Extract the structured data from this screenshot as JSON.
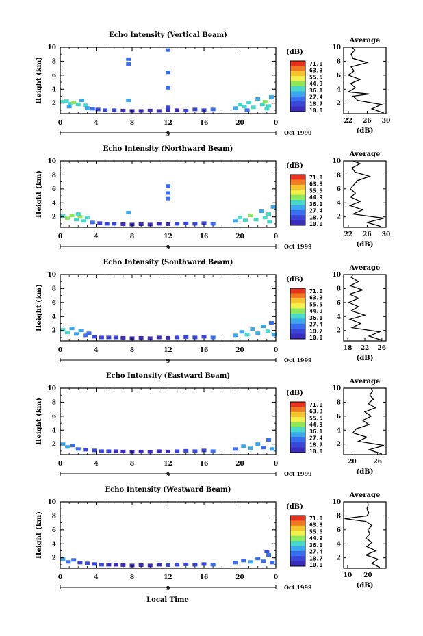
{
  "colorbar": {
    "unit_label": "(dB)",
    "levels": [
      "71.0",
      "63.3",
      "55.5",
      "44.9",
      "36.1",
      "27.4",
      "18.7",
      "10.0"
    ],
    "colors": [
      "#e8321e",
      "#f07a22",
      "#f6c42c",
      "#f2f04a",
      "#8ee85c",
      "#48d8c8",
      "#3aa8ec",
      "#3a6ef0",
      "#3a46d8",
      "#3a2cbc"
    ]
  },
  "x_axis": {
    "ticks": [
      "0",
      "4",
      "8",
      "12",
      "16",
      "20",
      "0"
    ],
    "date_day": "9",
    "date_label": "Oct 1999",
    "xlabel": "Local Time"
  },
  "chart_data": [
    {
      "type": "heatmap",
      "title": "Echo Intensity (Vertical Beam)",
      "ylabel": "Height (km)",
      "yticks": [
        "2",
        "4",
        "6",
        "8",
        "10"
      ],
      "ylim": [
        0.5,
        10
      ],
      "xlim": [
        0,
        24
      ],
      "cells": [
        [
          0.3,
          2.2,
          36
        ],
        [
          0.7,
          2.3,
          40
        ],
        [
          1.1,
          1.9,
          38
        ],
        [
          1.5,
          2.1,
          42
        ],
        [
          2.0,
          1.8,
          36
        ],
        [
          2.4,
          2.4,
          30
        ],
        [
          2.8,
          1.7,
          34
        ],
        [
          3.0,
          1.3,
          30
        ],
        [
          1.0,
          1.5,
          33
        ],
        [
          3.6,
          1.2,
          22
        ],
        [
          4.2,
          1.1,
          20
        ],
        [
          5.0,
          1.0,
          18
        ],
        [
          6.0,
          1.0,
          14
        ],
        [
          7.0,
          0.95,
          12
        ],
        [
          8.0,
          0.9,
          12
        ],
        [
          9.0,
          0.9,
          11
        ],
        [
          10.0,
          0.95,
          10
        ],
        [
          11.0,
          0.9,
          11
        ],
        [
          12.0,
          1.0,
          12
        ],
        [
          13.0,
          1.0,
          13
        ],
        [
          14.0,
          0.95,
          14
        ],
        [
          15.0,
          1.1,
          16
        ],
        [
          16.0,
          1.0,
          18
        ],
        [
          17.0,
          1.1,
          22
        ],
        [
          7.6,
          8.3,
          24
        ],
        [
          7.6,
          7.6,
          22
        ],
        [
          12.0,
          9.6,
          26
        ],
        [
          12.0,
          6.4,
          24
        ],
        [
          12.0,
          4.2,
          22
        ],
        [
          7.6,
          2.4,
          30
        ],
        [
          12.0,
          1.4,
          20
        ],
        [
          19.5,
          1.3,
          30
        ],
        [
          20.0,
          1.8,
          34
        ],
        [
          20.5,
          1.5,
          38
        ],
        [
          21.0,
          2.1,
          40
        ],
        [
          21.5,
          1.4,
          36
        ],
        [
          22.0,
          2.6,
          32
        ],
        [
          22.5,
          1.8,
          38
        ],
        [
          23.0,
          1.2,
          34
        ],
        [
          23.5,
          2.9,
          30
        ],
        [
          23.2,
          1.6,
          40
        ],
        [
          20.8,
          1.0,
          26
        ],
        [
          22.8,
          2.2,
          42
        ]
      ],
      "average": {
        "xlabel": "(dB)",
        "xticks": [
          "22",
          "26",
          "30"
        ],
        "xlim": [
          21,
          30
        ],
        "profile": [
          [
            0.6,
            29.5
          ],
          [
            1.2,
            27
          ],
          [
            1.8,
            29
          ],
          [
            2.4,
            24
          ],
          [
            3.0,
            23
          ],
          [
            3.3,
            26.5
          ],
          [
            3.6,
            22
          ],
          [
            4.2,
            23.5
          ],
          [
            4.8,
            22.5
          ],
          [
            5.4,
            24.5
          ],
          [
            6.0,
            22
          ],
          [
            6.6,
            23.2
          ],
          [
            7.2,
            22.6
          ],
          [
            7.8,
            26.0
          ],
          [
            8.4,
            23.0
          ],
          [
            9.0,
            22.6
          ],
          [
            9.6,
            23.4
          ],
          [
            10.0,
            22.8
          ]
        ]
      }
    },
    {
      "type": "heatmap",
      "title": "Echo Intensity (Northward Beam)",
      "ylabel": "Height (km)",
      "yticks": [
        "2",
        "4",
        "6",
        "8",
        "10"
      ],
      "ylim": [
        0.5,
        10
      ],
      "xlim": [
        0,
        24
      ],
      "cells": [
        [
          0.3,
          2.1,
          38
        ],
        [
          0.8,
          1.8,
          42
        ],
        [
          1.3,
          2.2,
          44
        ],
        [
          1.8,
          1.6,
          40
        ],
        [
          2.2,
          2.0,
          46
        ],
        [
          2.6,
          1.4,
          36
        ],
        [
          3.0,
          1.9,
          34
        ],
        [
          2.0,
          2.4,
          38
        ],
        [
          3.6,
          1.2,
          22
        ],
        [
          4.4,
          1.1,
          20
        ],
        [
          5.2,
          1.0,
          18
        ],
        [
          6.0,
          1.0,
          15
        ],
        [
          7.0,
          0.95,
          12
        ],
        [
          8.0,
          0.9,
          11
        ],
        [
          9.0,
          0.95,
          10
        ],
        [
          10.0,
          0.9,
          11
        ],
        [
          11.0,
          1.0,
          12
        ],
        [
          12.0,
          0.95,
          13
        ],
        [
          13.0,
          1.0,
          14
        ],
        [
          14.0,
          1.05,
          16
        ],
        [
          15.0,
          1.0,
          18
        ],
        [
          16.0,
          1.1,
          20
        ],
        [
          17.0,
          1.0,
          24
        ],
        [
          12.0,
          6.4,
          24
        ],
        [
          12.0,
          5.4,
          22
        ],
        [
          12.0,
          4.6,
          22
        ],
        [
          7.6,
          2.6,
          28
        ],
        [
          19.5,
          1.4,
          30
        ],
        [
          20.0,
          1.9,
          34
        ],
        [
          20.6,
          1.5,
          38
        ],
        [
          21.2,
          2.2,
          42
        ],
        [
          21.8,
          1.6,
          36
        ],
        [
          22.4,
          2.8,
          32
        ],
        [
          22.8,
          1.9,
          40
        ],
        [
          23.3,
          1.3,
          34
        ],
        [
          23.7,
          3.4,
          28
        ],
        [
          23.2,
          2.4,
          38
        ]
      ],
      "average": {
        "xlabel": "(dB)",
        "xticks": [
          "22",
          "26",
          "30"
        ],
        "xlim": [
          21,
          30
        ],
        "profile": [
          [
            0.6,
            29
          ],
          [
            1.2,
            26
          ],
          [
            1.8,
            29.5
          ],
          [
            2.4,
            23
          ],
          [
            3.0,
            25
          ],
          [
            3.6,
            22.4
          ],
          [
            4.2,
            24.5
          ],
          [
            4.8,
            22.6
          ],
          [
            5.4,
            23.5
          ],
          [
            6.0,
            22.4
          ],
          [
            6.6,
            23.2
          ],
          [
            7.2,
            24.0
          ],
          [
            7.8,
            26.5
          ],
          [
            8.4,
            23.4
          ],
          [
            9.0,
            22.8
          ],
          [
            9.6,
            24.5
          ],
          [
            10.0,
            23.0
          ]
        ]
      }
    },
    {
      "type": "heatmap",
      "title": "Echo Intensity (Southward Beam)",
      "ylabel": "Height (km)",
      "yticks": [
        "2",
        "4",
        "6",
        "8",
        "10"
      ],
      "ylim": [
        0.5,
        10
      ],
      "xlim": [
        0,
        24
      ],
      "cells": [
        [
          0.3,
          2.1,
          34
        ],
        [
          0.8,
          1.7,
          36
        ],
        [
          1.3,
          2.3,
          30
        ],
        [
          1.8,
          1.5,
          32
        ],
        [
          2.3,
          2.0,
          28
        ],
        [
          2.8,
          1.3,
          26
        ],
        [
          3.2,
          1.6,
          24
        ],
        [
          3.8,
          1.1,
          20
        ],
        [
          4.6,
          1.0,
          18
        ],
        [
          5.4,
          1.0,
          16
        ],
        [
          6.2,
          1.0,
          14
        ],
        [
          7.0,
          0.95,
          12
        ],
        [
          8.0,
          0.9,
          11
        ],
        [
          9.0,
          0.95,
          10
        ],
        [
          10.0,
          0.9,
          11
        ],
        [
          11.0,
          1.0,
          12
        ],
        [
          12.0,
          0.95,
          13
        ],
        [
          13.0,
          1.0,
          14
        ],
        [
          14.0,
          1.05,
          16
        ],
        [
          15.0,
          1.0,
          18
        ],
        [
          16.0,
          1.1,
          20
        ],
        [
          17.0,
          1.0,
          24
        ],
        [
          19.5,
          1.3,
          28
        ],
        [
          20.2,
          1.8,
          32
        ],
        [
          20.8,
          1.4,
          34
        ],
        [
          21.4,
          2.2,
          30
        ],
        [
          22.0,
          1.6,
          32
        ],
        [
          22.6,
          2.6,
          28
        ],
        [
          23.1,
          1.9,
          34
        ],
        [
          23.5,
          3.1,
          26
        ],
        [
          23.8,
          1.4,
          30
        ]
      ],
      "average": {
        "xlabel": "(dB)",
        "xticks": [
          "18",
          "22",
          "26"
        ],
        "xlim": [
          17,
          27
        ],
        "profile": [
          [
            0.6,
            26
          ],
          [
            1.2,
            23
          ],
          [
            1.8,
            25.5
          ],
          [
            2.4,
            19
          ],
          [
            3.0,
            21
          ],
          [
            3.6,
            18.5
          ],
          [
            4.2,
            22
          ],
          [
            4.8,
            18.8
          ],
          [
            5.4,
            20.5
          ],
          [
            6.0,
            18.2
          ],
          [
            6.6,
            20.5
          ],
          [
            7.2,
            18.4
          ],
          [
            7.8,
            21.5
          ],
          [
            8.4,
            18.6
          ],
          [
            9.0,
            20.5
          ],
          [
            9.6,
            18.8
          ],
          [
            10.0,
            19.2
          ]
        ]
      }
    },
    {
      "type": "heatmap",
      "title": "Echo Intensity (Eastward Beam)",
      "ylabel": "Height (km)",
      "yticks": [
        "2",
        "4",
        "6",
        "8",
        "10"
      ],
      "ylim": [
        0.5,
        10
      ],
      "xlim": [
        0,
        24
      ],
      "cells": [
        [
          0.3,
          2.0,
          30
        ],
        [
          0.8,
          1.6,
          28
        ],
        [
          1.4,
          1.8,
          24
        ],
        [
          2.0,
          1.3,
          22
        ],
        [
          2.8,
          1.2,
          20
        ],
        [
          3.8,
          1.1,
          18
        ],
        [
          4.6,
          1.0,
          16
        ],
        [
          5.4,
          1.0,
          14
        ],
        [
          6.2,
          1.0,
          13
        ],
        [
          7.0,
          0.95,
          12
        ],
        [
          8.0,
          0.9,
          11
        ],
        [
          9.0,
          0.95,
          10
        ],
        [
          10.0,
          0.9,
          11
        ],
        [
          11.0,
          1.0,
          12
        ],
        [
          12.0,
          0.95,
          13
        ],
        [
          13.0,
          1.0,
          14
        ],
        [
          14.0,
          1.05,
          16
        ],
        [
          15.0,
          1.0,
          18
        ],
        [
          16.0,
          1.1,
          20
        ],
        [
          17.0,
          1.0,
          22
        ],
        [
          19.5,
          1.3,
          26
        ],
        [
          20.4,
          1.7,
          28
        ],
        [
          21.2,
          1.4,
          30
        ],
        [
          22.0,
          2.0,
          28
        ],
        [
          22.6,
          1.5,
          26
        ],
        [
          23.2,
          2.6,
          24
        ],
        [
          23.6,
          1.3,
          28
        ]
      ],
      "average": {
        "xlabel": "(dB)",
        "xticks": [
          "20",
          "26"
        ],
        "xlim": [
          18,
          28
        ],
        "profile": [
          [
            0.6,
            27
          ],
          [
            1.2,
            24
          ],
          [
            1.8,
            27.5
          ],
          [
            2.4,
            21.5
          ],
          [
            3.0,
            23.5
          ],
          [
            3.6,
            20.2
          ],
          [
            4.2,
            21
          ],
          [
            4.8,
            24
          ],
          [
            5.4,
            22.5
          ],
          [
            6.0,
            24.5
          ],
          [
            6.6,
            23
          ],
          [
            7.2,
            25.5
          ],
          [
            7.8,
            23.8
          ],
          [
            8.4,
            25
          ],
          [
            9.0,
            24.2
          ],
          [
            9.6,
            24.8
          ],
          [
            10.0,
            24.5
          ]
        ]
      }
    },
    {
      "type": "heatmap",
      "title": "Echo Intensity (Westward Beam)",
      "ylabel": "Height (km)",
      "yticks": [
        "2",
        "4",
        "6",
        "8",
        "10"
      ],
      "ylim": [
        0.5,
        10
      ],
      "xlim": [
        0,
        24
      ],
      "cells": [
        [
          0.3,
          1.8,
          28
        ],
        [
          0.9,
          1.4,
          26
        ],
        [
          1.5,
          1.7,
          22
        ],
        [
          2.2,
          1.3,
          20
        ],
        [
          3.0,
          1.2,
          18
        ],
        [
          3.8,
          1.1,
          16
        ],
        [
          4.6,
          1.0,
          14
        ],
        [
          5.4,
          1.0,
          13
        ],
        [
          6.2,
          1.0,
          12
        ],
        [
          7.0,
          0.95,
          11
        ],
        [
          8.0,
          0.9,
          10
        ],
        [
          9.0,
          0.95,
          11
        ],
        [
          10.0,
          0.9,
          12
        ],
        [
          11.0,
          1.0,
          13
        ],
        [
          12.0,
          0.95,
          14
        ],
        [
          13.0,
          1.0,
          15
        ],
        [
          14.0,
          1.05,
          16
        ],
        [
          15.0,
          1.0,
          18
        ],
        [
          16.0,
          1.1,
          20
        ],
        [
          17.0,
          1.0,
          22
        ],
        [
          19.5,
          1.3,
          24
        ],
        [
          20.4,
          1.6,
          26
        ],
        [
          21.2,
          1.4,
          28
        ],
        [
          22.0,
          1.9,
          26
        ],
        [
          22.6,
          1.5,
          24
        ],
        [
          23.2,
          2.4,
          22
        ],
        [
          23.6,
          1.3,
          26
        ],
        [
          23.0,
          2.9,
          20
        ]
      ],
      "average": {
        "xlabel": "(dB)",
        "xticks": [
          "10",
          "20"
        ],
        "xlim": [
          8,
          29
        ],
        "profile": [
          [
            0.6,
            26
          ],
          [
            1.2,
            22
          ],
          [
            1.8,
            25
          ],
          [
            2.4,
            19
          ],
          [
            3.0,
            24
          ],
          [
            3.6,
            19.5
          ],
          [
            4.2,
            22
          ],
          [
            4.8,
            19
          ],
          [
            5.4,
            21
          ],
          [
            6.0,
            20
          ],
          [
            6.6,
            22
          ],
          [
            7.2,
            19
          ],
          [
            7.6,
            8.5
          ],
          [
            8.0,
            19.5
          ],
          [
            8.4,
            20.5
          ],
          [
            9.0,
            19.5
          ],
          [
            9.6,
            20.2
          ],
          [
            10.0,
            19.8
          ]
        ]
      }
    }
  ]
}
